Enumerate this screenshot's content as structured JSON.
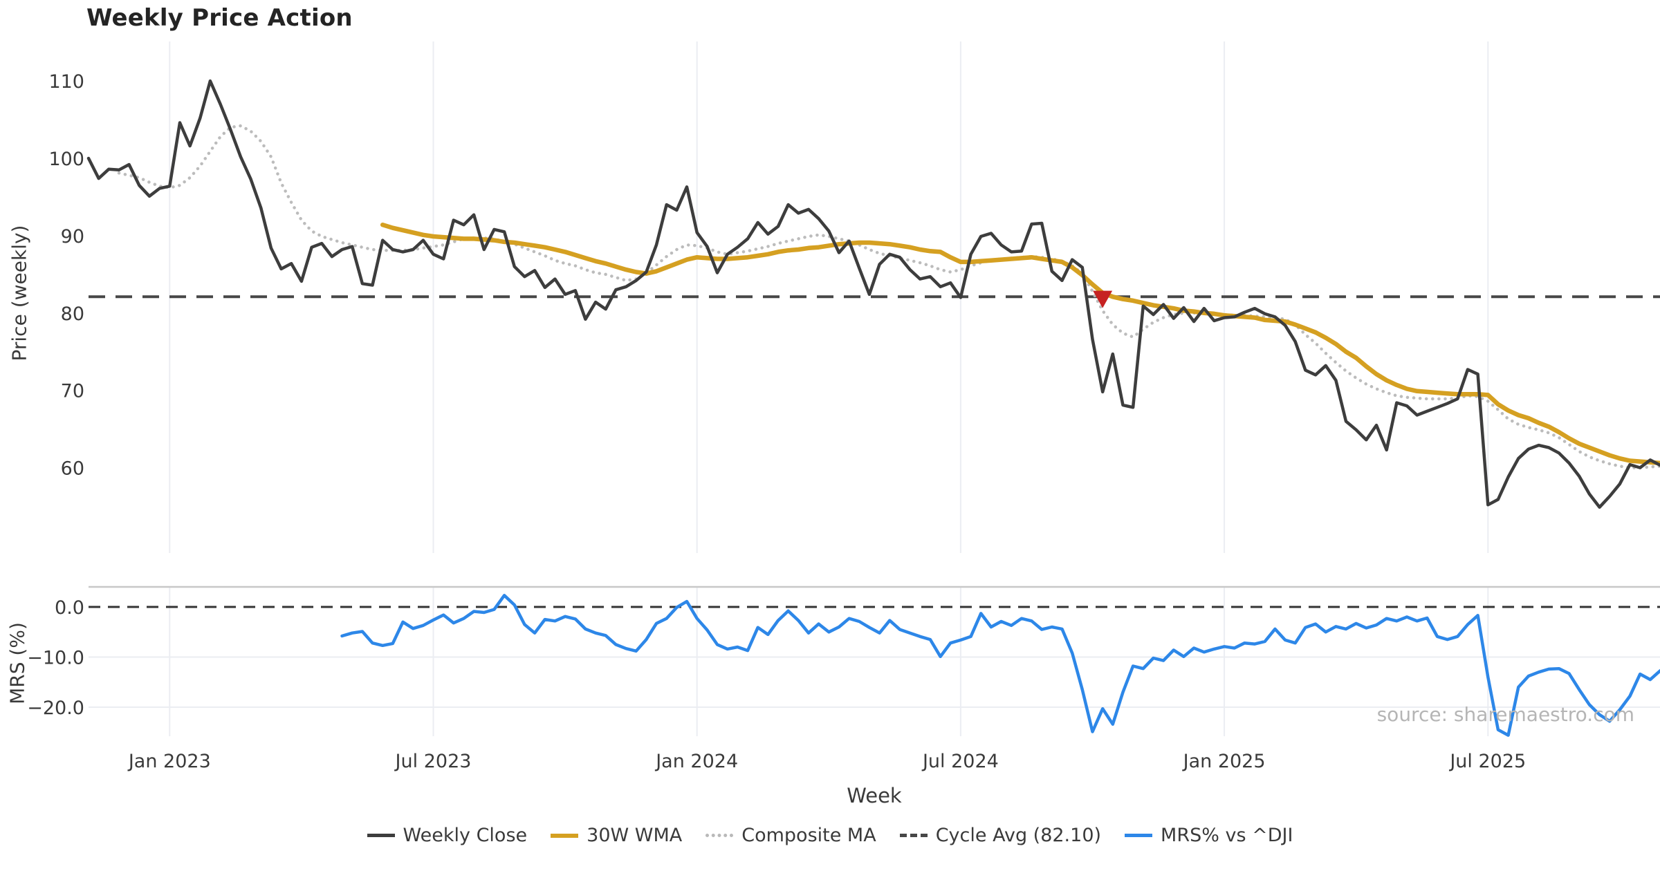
{
  "title": "Weekly Price Action",
  "source_text": "source: sharemaestro.com",
  "x_axis": {
    "label": "Week",
    "ticks": [
      {
        "label": "Jan 2023",
        "week": 8
      },
      {
        "label": "Jul 2023",
        "week": 34
      },
      {
        "label": "Jan 2024",
        "week": 60
      },
      {
        "label": "Jul 2024",
        "week": 86
      },
      {
        "label": "Jan 2025",
        "week": 112
      },
      {
        "label": "Jul 2025",
        "week": 138
      }
    ]
  },
  "price_panel": {
    "ylabel": "Price (weekly)",
    "yticks": [
      {
        "label": "110",
        "value": 110
      },
      {
        "label": "100",
        "value": 100
      },
      {
        "label": "90",
        "value": 90
      },
      {
        "label": "80",
        "value": 80
      },
      {
        "label": "70",
        "value": 70
      },
      {
        "label": "60",
        "value": 60
      }
    ]
  },
  "mrs_panel": {
    "ylabel": "MRS (%)",
    "yticks": [
      {
        "label": "0.0",
        "value": 0
      },
      {
        "label": "−10.0",
        "value": -10
      },
      {
        "label": "−20.0",
        "value": -20
      }
    ]
  },
  "legend": {
    "items": [
      {
        "label": "Weekly Close"
      },
      {
        "label": "30W WMA"
      },
      {
        "label": "Composite MA"
      },
      {
        "label": "Cycle Avg (82.10)"
      },
      {
        "label": "MRS% vs ^DJI"
      }
    ]
  },
  "colors": {
    "close": "#3d3d3d",
    "wma": "#D5A021",
    "composite": "#bcbcbc",
    "cycle": "#474747",
    "mrs": "#2D87E8",
    "marker": "#C62222",
    "grid": "#ebedf2",
    "spine": "#c8c8c8",
    "text": "#3a3a3a"
  },
  "chart_data": [
    {
      "type": "line",
      "panel": "price",
      "title": "Weekly Price Action",
      "xlabel": "Week",
      "ylabel": "Price (weekly)",
      "x_unit": "week_index",
      "ylim_approx": [
        49,
        115
      ],
      "grid": "vertical-only",
      "cycle_avg": 82.1,
      "signal_marker": {
        "week": 100,
        "value": 81.8,
        "shape": "triangle-down"
      },
      "series": [
        {
          "name": "Weekly Close",
          "start_week": 0,
          "values": [
            100.0,
            97.4,
            98.6,
            98.5,
            99.2,
            96.5,
            95.1,
            96.1,
            96.4,
            104.6,
            101.6,
            105.2,
            110.0,
            107.0,
            103.7,
            100.2,
            97.3,
            93.6,
            88.4,
            85.7,
            86.4,
            84.1,
            88.5,
            89.0,
            87.3,
            88.2,
            88.6,
            83.8,
            83.6,
            89.4,
            88.2,
            87.9,
            88.2,
            89.4,
            87.6,
            87.0,
            92.0,
            91.4,
            92.7,
            88.2,
            90.8,
            90.5,
            86.0,
            84.7,
            85.5,
            83.3,
            84.4,
            82.4,
            82.9,
            79.2,
            81.4,
            80.5,
            83.0,
            83.4,
            84.2,
            85.3,
            88.8,
            94.0,
            93.3,
            96.3,
            90.4,
            88.6,
            85.2,
            87.6,
            88.5,
            89.6,
            91.7,
            90.2,
            91.2,
            94.0,
            92.9,
            93.4,
            92.2,
            90.6,
            87.8,
            89.3,
            85.8,
            82.4,
            86.3,
            87.6,
            87.2,
            85.6,
            84.4,
            84.7,
            83.4,
            83.9,
            82.0,
            87.6,
            89.9,
            90.3,
            88.8,
            87.9,
            88.0,
            91.5,
            91.6,
            85.4,
            84.2,
            86.9,
            85.9,
            76.6,
            69.8,
            74.7,
            68.1,
            67.8,
            80.9,
            79.8,
            81.1,
            79.3,
            80.7,
            78.9,
            80.6,
            79.0,
            79.4,
            79.5,
            80.1,
            80.6,
            79.9,
            79.5,
            78.4,
            76.3,
            72.6,
            72.0,
            73.2,
            71.3,
            66.0,
            64.9,
            63.6,
            65.5,
            62.3,
            68.4,
            68.0,
            66.8,
            67.3,
            67.8,
            68.3,
            68.9,
            72.7,
            72.1,
            55.2,
            55.9,
            58.8,
            61.2,
            62.4,
            62.9,
            62.6,
            61.9,
            60.6,
            58.9,
            56.6,
            54.9,
            56.3,
            57.9,
            60.4,
            60.0,
            61.0,
            60.3
          ]
        },
        {
          "name": "30W WMA",
          "start_week": 29,
          "values": [
            91.4,
            91.0,
            90.7,
            90.4,
            90.1,
            89.9,
            89.8,
            89.7,
            89.6,
            89.6,
            89.5,
            89.4,
            89.2,
            89.1,
            88.9,
            88.7,
            88.5,
            88.2,
            87.9,
            87.5,
            87.1,
            86.7,
            86.4,
            86.0,
            85.6,
            85.3,
            85.1,
            85.4,
            85.9,
            86.4,
            86.9,
            87.2,
            87.1,
            87.0,
            87.0,
            87.1,
            87.2,
            87.4,
            87.6,
            87.9,
            88.1,
            88.2,
            88.4,
            88.5,
            88.7,
            88.9,
            89.0,
            89.1,
            89.1,
            89.0,
            88.9,
            88.7,
            88.5,
            88.2,
            88.0,
            87.9,
            87.2,
            86.6,
            86.6,
            86.7,
            86.8,
            86.9,
            87.0,
            87.1,
            87.2,
            87.0,
            86.8,
            86.6,
            85.9,
            84.9,
            83.7,
            82.6,
            82.1,
            81.8,
            81.6,
            81.3,
            81.0,
            80.8,
            80.6,
            80.3,
            80.2,
            80.0,
            79.9,
            79.7,
            79.6,
            79.5,
            79.4,
            79.1,
            79.0,
            78.9,
            78.5,
            78.0,
            77.5,
            76.8,
            76.0,
            75.0,
            74.2,
            73.1,
            72.1,
            71.3,
            70.7,
            70.2,
            69.9,
            69.8,
            69.7,
            69.6,
            69.5,
            69.5,
            69.5,
            69.4,
            68.2,
            67.4,
            66.8,
            66.4,
            65.8,
            65.3,
            64.6,
            63.8,
            63.1,
            62.6,
            62.1,
            61.6,
            61.2,
            60.9,
            60.8,
            60.7,
            60.6
          ]
        },
        {
          "name": "Composite MA",
          "start_week": 3,
          "values": [
            98.1,
            97.8,
            97.5,
            96.9,
            96.4,
            96.2,
            96.5,
            97.5,
            99.0,
            100.9,
            102.8,
            104.0,
            104.2,
            103.5,
            102.2,
            100.2,
            96.8,
            94.3,
            92.0,
            90.6,
            89.9,
            89.5,
            89.1,
            88.8,
            88.5,
            88.2,
            88.1,
            88.1,
            88.1,
            88.2,
            88.4,
            88.6,
            88.8,
            89.2,
            89.6,
            89.7,
            89.7,
            89.6,
            89.2,
            88.9,
            88.4,
            87.9,
            87.4,
            86.8,
            86.4,
            86.1,
            85.6,
            85.2,
            85.0,
            84.6,
            84.2,
            84.4,
            85.2,
            86.2,
            87.3,
            88.2,
            88.8,
            88.7,
            88.4,
            87.9,
            87.6,
            87.8,
            88.0,
            88.3,
            88.6,
            89.0,
            89.3,
            89.6,
            89.9,
            90.1,
            89.9,
            89.6,
            89.3,
            88.8,
            88.2,
            87.7,
            87.4,
            87.1,
            86.8,
            86.5,
            86.1,
            85.6,
            85.3,
            85.6,
            86.1,
            86.5,
            86.8,
            87.0,
            87.1,
            87.2,
            87.3,
            87.2,
            87.0,
            86.7,
            86.1,
            85.1,
            82.8,
            80.3,
            78.5,
            77.4,
            76.9,
            77.9,
            78.8,
            79.4,
            79.8,
            80.0,
            80.0,
            79.9,
            79.9,
            79.8,
            79.7,
            79.7,
            79.6,
            79.5,
            79.4,
            79.2,
            78.5,
            77.2,
            76.1,
            74.8,
            73.6,
            72.5,
            71.6,
            70.8,
            70.2,
            69.7,
            69.3,
            69.1,
            69.0,
            68.9,
            68.9,
            68.9,
            69.0,
            69.3,
            69.2,
            68.6,
            67.5,
            66.3,
            65.6,
            65.2,
            64.9,
            64.5,
            63.9,
            63.0,
            62.1,
            61.4,
            60.9,
            60.5,
            60.2,
            60.0,
            60.0,
            60.1,
            60.2
          ]
        }
      ]
    },
    {
      "type": "line",
      "panel": "mrs",
      "ylabel": "MRS (%)",
      "x_unit": "week_index",
      "zero_line": 0.0,
      "ylim_approx": [
        -25.8,
        4.0
      ],
      "series": [
        {
          "name": "MRS% vs ^DJI",
          "start_week": 25,
          "values": [
            -5.8,
            -5.2,
            -4.9,
            -7.2,
            -7.7,
            -7.3,
            -3.0,
            -4.3,
            -3.7,
            -2.6,
            -1.6,
            -3.2,
            -2.3,
            -0.9,
            -1.1,
            -0.5,
            2.3,
            0.4,
            -3.5,
            -5.2,
            -2.5,
            -2.8,
            -1.9,
            -2.4,
            -4.4,
            -5.2,
            -5.7,
            -7.5,
            -8.3,
            -8.8,
            -6.5,
            -3.3,
            -2.3,
            -0.1,
            1.1,
            -2.3,
            -4.6,
            -7.5,
            -8.4,
            -8.0,
            -8.7,
            -4.1,
            -5.5,
            -2.7,
            -0.8,
            -2.7,
            -5.2,
            -3.4,
            -5.0,
            -4.0,
            -2.3,
            -2.9,
            -4.1,
            -5.2,
            -2.7,
            -4.5,
            -5.2,
            -5.9,
            -6.5,
            -9.9,
            -7.2,
            -6.6,
            -5.9,
            -1.3,
            -4.0,
            -2.9,
            -3.7,
            -2.3,
            -2.8,
            -4.5,
            -4.0,
            -4.4,
            -9.2,
            -16.5,
            -24.9,
            -20.3,
            -23.4,
            -17.0,
            -11.8,
            -12.3,
            -10.2,
            -10.7,
            -8.6,
            -9.9,
            -8.2,
            -9.0,
            -8.4,
            -7.9,
            -8.2,
            -7.2,
            -7.4,
            -6.9,
            -4.4,
            -6.6,
            -7.2,
            -4.1,
            -3.4,
            -5.0,
            -3.9,
            -4.4,
            -3.3,
            -4.2,
            -3.6,
            -2.3,
            -2.8,
            -2.0,
            -2.8,
            -2.2,
            -5.9,
            -6.5,
            -5.9,
            -3.5,
            -1.7,
            -14.0,
            -24.5,
            -25.6,
            -16.0,
            -13.8,
            -13.0,
            -12.4,
            -12.3,
            -13.3,
            -16.5,
            -19.5,
            -21.5,
            -22.8,
            -20.5,
            -17.8,
            -13.4,
            -14.5,
            -12.7
          ]
        }
      ]
    }
  ]
}
